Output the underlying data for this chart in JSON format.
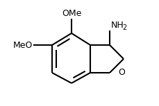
{
  "bg_color": "#ffffff",
  "line_color": "#000000",
  "bond_lw": 1.5,
  "text_color": "#000000",
  "label_OMe": {
    "text": "OMe",
    "fontsize": 9
  },
  "label_NH": {
    "text": "NH",
    "fontsize": 9
  },
  "label_2": {
    "text": "2",
    "fontsize": 7
  },
  "label_MeO": {
    "text": "MeO",
    "fontsize": 9
  },
  "label_O": {
    "text": "O",
    "fontsize": 9
  }
}
